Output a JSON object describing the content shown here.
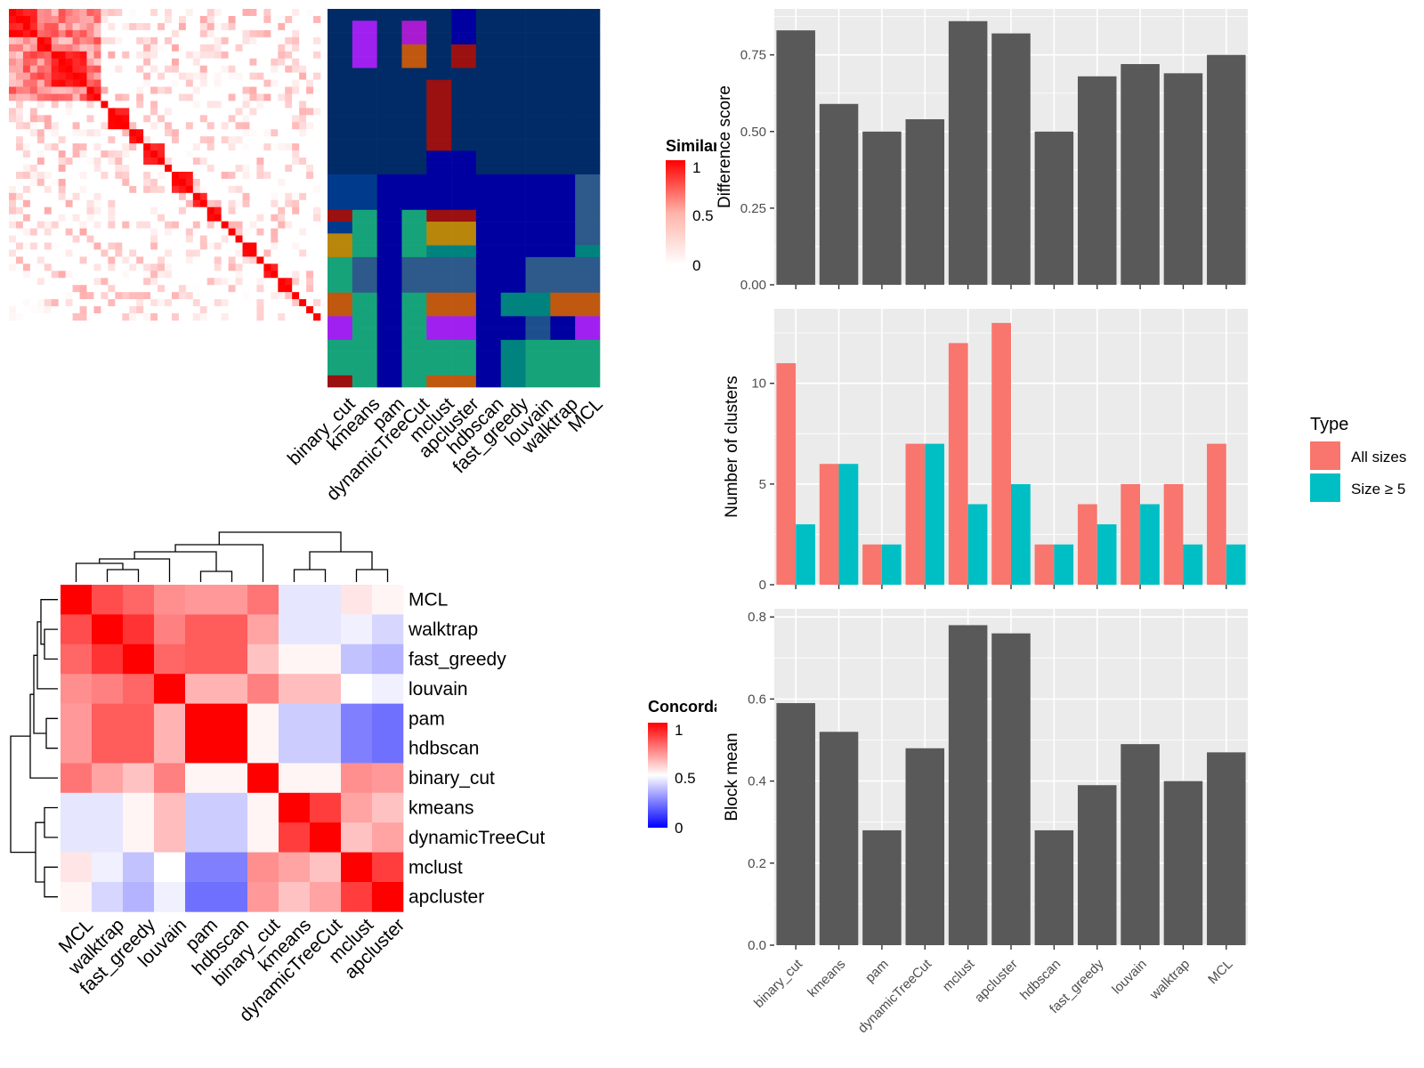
{
  "methods": [
    "binary_cut",
    "kmeans",
    "pam",
    "dynamicTreeCut",
    "mclust",
    "apcluster",
    "hdbscan",
    "fast_greedy",
    "louvain",
    "walktrap",
    "MCL"
  ],
  "similarity_legend": {
    "title": "Similarity",
    "ticks": [
      "1",
      "0.5",
      "0"
    ]
  },
  "concordance_legend": {
    "title": "Concordance",
    "ticks": [
      "1",
      "0.5",
      "0"
    ]
  },
  "concordance_order": [
    "MCL",
    "walktrap",
    "fast_greedy",
    "louvain",
    "pam",
    "hdbscan",
    "binary_cut",
    "kmeans",
    "dynamicTreeCut",
    "mclust",
    "apcluster"
  ],
  "type_legend": {
    "title": "Type",
    "items": [
      "All sizes",
      "Size ≥ 5"
    ]
  },
  "colors": {
    "panel_bg": "#ebebeb",
    "bar_dark": "#595959",
    "all_sizes": "#f8766d",
    "size5": "#00bfc4",
    "heat_red": "#ff0000",
    "heat_blue": "#0000ff",
    "navy": "#002b66"
  },
  "chart_data": [
    {
      "type": "bar",
      "categories": [
        "binary_cut",
        "kmeans",
        "pam",
        "dynamicTreeCut",
        "mclust",
        "apcluster",
        "hdbscan",
        "fast_greedy",
        "louvain",
        "walktrap",
        "MCL"
      ],
      "values": [
        0.83,
        0.59,
        0.5,
        0.54,
        0.86,
        0.82,
        0.5,
        0.68,
        0.72,
        0.69,
        0.75
      ],
      "xlabel": "",
      "ylabel": "Difference score",
      "ylim": [
        0,
        0.9
      ],
      "yticks": [
        "0.00",
        "0.25",
        "0.50",
        "0.75"
      ]
    },
    {
      "type": "bar",
      "categories": [
        "binary_cut",
        "kmeans",
        "pam",
        "dynamicTreeCut",
        "mclust",
        "apcluster",
        "hdbscan",
        "fast_greedy",
        "louvain",
        "walktrap",
        "MCL"
      ],
      "series": [
        {
          "name": "All sizes",
          "values": [
            11,
            6,
            2,
            7,
            12,
            13,
            2,
            4,
            5,
            5,
            7
          ]
        },
        {
          "name": "Size ≥ 5",
          "values": [
            3,
            6,
            2,
            7,
            4,
            5,
            2,
            3,
            4,
            2,
            2
          ]
        }
      ],
      "xlabel": "",
      "ylabel": "Number of clusters",
      "ylim": [
        0,
        13.7
      ],
      "yticks": [
        "0",
        "5",
        "10"
      ]
    },
    {
      "type": "bar",
      "categories": [
        "binary_cut",
        "kmeans",
        "pam",
        "dynamicTreeCut",
        "mclust",
        "apcluster",
        "hdbscan",
        "fast_greedy",
        "louvain",
        "walktrap",
        "MCL"
      ],
      "values": [
        0.59,
        0.52,
        0.28,
        0.48,
        0.78,
        0.76,
        0.28,
        0.39,
        0.49,
        0.4,
        0.47
      ],
      "xlabel": "",
      "ylabel": "Block mean",
      "ylim": [
        0,
        0.82
      ],
      "yticks": [
        "0.0",
        "0.2",
        "0.4",
        "0.6",
        "0.8"
      ]
    },
    {
      "type": "heatmap",
      "rows": [
        "MCL",
        "walktrap",
        "fast_greedy",
        "louvain",
        "pam",
        "hdbscan",
        "binary_cut",
        "kmeans",
        "dynamicTreeCut",
        "mclust",
        "apcluster"
      ],
      "cols": [
        "MCL",
        "walktrap",
        "fast_greedy",
        "louvain",
        "pam",
        "hdbscan",
        "binary_cut",
        "kmeans",
        "dynamicTreeCut",
        "mclust",
        "apcluster"
      ],
      "values": [
        [
          1.0,
          0.85,
          0.8,
          0.72,
          0.7,
          0.7,
          0.77,
          0.45,
          0.45,
          0.55,
          0.52
        ],
        [
          0.85,
          1.0,
          0.9,
          0.75,
          0.82,
          0.82,
          0.68,
          0.45,
          0.45,
          0.47,
          0.42
        ],
        [
          0.8,
          0.9,
          1.0,
          0.8,
          0.82,
          0.82,
          0.62,
          0.52,
          0.52,
          0.38,
          0.35
        ],
        [
          0.72,
          0.75,
          0.8,
          1.0,
          0.65,
          0.65,
          0.75,
          0.63,
          0.63,
          0.5,
          0.47
        ],
        [
          0.7,
          0.82,
          0.82,
          0.65,
          1.0,
          1.0,
          0.52,
          0.4,
          0.4,
          0.25,
          0.22
        ],
        [
          0.7,
          0.82,
          0.82,
          0.65,
          1.0,
          1.0,
          0.52,
          0.4,
          0.4,
          0.25,
          0.22
        ],
        [
          0.77,
          0.68,
          0.62,
          0.75,
          0.52,
          0.52,
          1.0,
          0.52,
          0.52,
          0.72,
          0.7
        ],
        [
          0.45,
          0.45,
          0.52,
          0.63,
          0.4,
          0.4,
          0.52,
          1.0,
          0.88,
          0.68,
          0.62
        ],
        [
          0.45,
          0.45,
          0.52,
          0.63,
          0.4,
          0.4,
          0.52,
          0.88,
          1.0,
          0.62,
          0.68
        ],
        [
          0.55,
          0.47,
          0.38,
          0.5,
          0.25,
          0.25,
          0.72,
          0.68,
          0.62,
          1.0,
          0.88
        ],
        [
          0.52,
          0.42,
          0.35,
          0.47,
          0.22,
          0.22,
          0.7,
          0.62,
          0.68,
          0.88,
          1.0
        ]
      ],
      "legend_title": "Concordance",
      "range": [
        0,
        1
      ]
    },
    {
      "type": "heatmap",
      "legend_title": "Similarity",
      "block_sizes": [
        4,
        2,
        5,
        2,
        1,
        3,
        2,
        3,
        1,
        3,
        2,
        2,
        1,
        1,
        1,
        2,
        1,
        2,
        2,
        1,
        1,
        1,
        1
      ],
      "cluster_columns": [
        "binary_cut",
        "kmeans",
        "pam",
        "dynamicTreeCut",
        "mclust",
        "apcluster",
        "hdbscan",
        "fast_greedy",
        "louvain",
        "walktrap",
        "MCL"
      ],
      "range": [
        0,
        1
      ]
    }
  ]
}
